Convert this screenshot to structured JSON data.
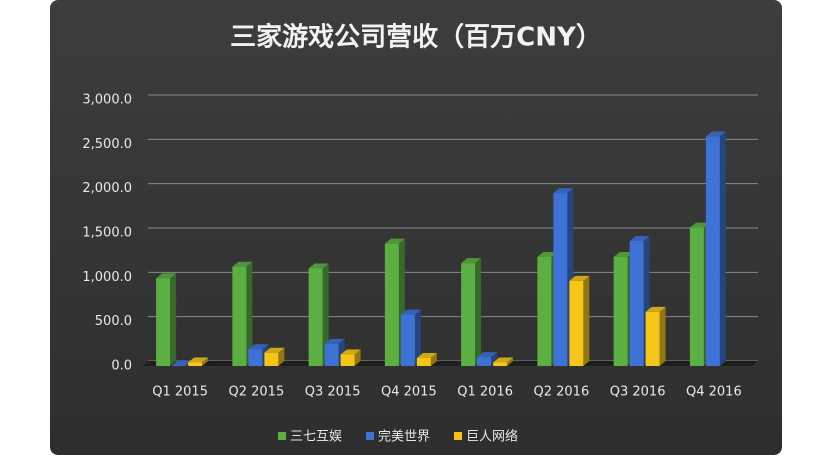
{
  "chart_data": {
    "type": "bar3d",
    "title": "三家游戏公司营收（百万CNY）",
    "categories": [
      "Q1 2015",
      "Q2 2015",
      "Q3 2015",
      "Q4 2015",
      "Q1 2016",
      "Q2 2016",
      "Q3 2016",
      "Q4 2016"
    ],
    "series": [
      {
        "name": "三七互娱",
        "color": "#5cb043",
        "values": [
          990,
          1120,
          1100,
          1380,
          1160,
          1230,
          1230,
          1560
        ]
      },
      {
        "name": "完美世界",
        "color": "#3f72d6",
        "values": [
          10,
          190,
          250,
          580,
          100,
          1950,
          1410,
          2590
        ]
      },
      {
        "name": "巨人网络",
        "color": "#f5c518",
        "values": [
          40,
          150,
          130,
          90,
          40,
          960,
          610,
          null
        ]
      }
    ],
    "ylim": [
      0,
      3000
    ],
    "yticks": [
      {
        "value": 0,
        "label": "0.0"
      },
      {
        "value": 500,
        "label": "500.0"
      },
      {
        "value": 1000,
        "label": "1,000.0"
      },
      {
        "value": 1500,
        "label": "1,500.0"
      },
      {
        "value": 2000,
        "label": "2,000.0"
      },
      {
        "value": 2500,
        "label": "2,500.0"
      },
      {
        "value": 3000,
        "label": "3,000.0"
      }
    ],
    "grid": true,
    "legend": "bottom"
  }
}
